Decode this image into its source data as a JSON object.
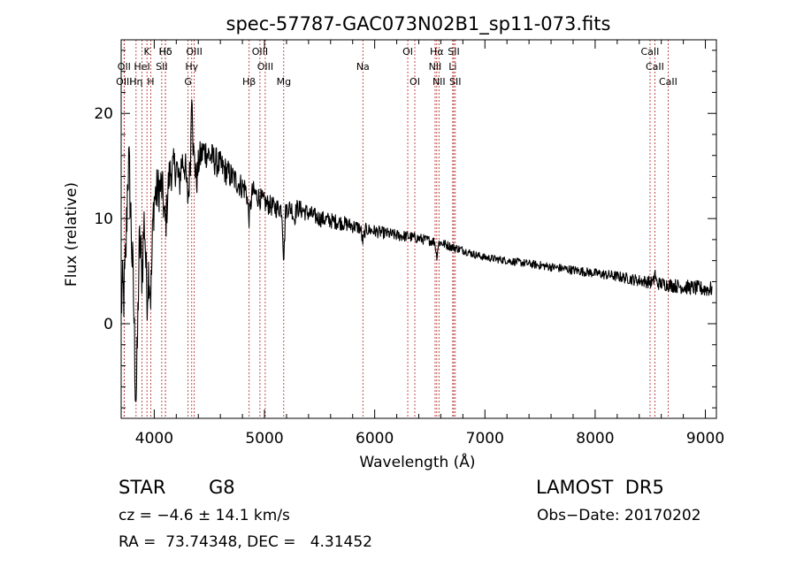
{
  "chart_data": {
    "type": "line",
    "title": "spec-57787-GAC073N02B1_sp11-073.fits",
    "xlabel": "Wavelength (Å)",
    "ylabel": "Flux (relative)",
    "xlim": [
      3700,
      9100
    ],
    "ylim": [
      -9,
      27
    ],
    "xticks": [
      4000,
      5000,
      6000,
      7000,
      8000,
      9000
    ],
    "xtick_labels": [
      "4000",
      "5000",
      "6000",
      "7000",
      "8000",
      "9000"
    ],
    "yticks": [
      0,
      10,
      20
    ],
    "ytick_labels": [
      "0",
      "10",
      "20"
    ],
    "grid": false,
    "line_color": "#000000",
    "marker_color": "#b22222",
    "spectrum_knots": [
      [
        3700,
        4
      ],
      [
        3730,
        8
      ],
      [
        3760,
        15
      ],
      [
        3790,
        12
      ],
      [
        3820,
        10
      ],
      [
        3850,
        9
      ],
      [
        3880,
        11
      ],
      [
        3910,
        12
      ],
      [
        3940,
        11
      ],
      [
        3970,
        10
      ],
      [
        4000,
        12
      ],
      [
        4050,
        13
      ],
      [
        4100,
        13.5
      ],
      [
        4150,
        14.5
      ],
      [
        4200,
        15
      ],
      [
        4250,
        15.5
      ],
      [
        4300,
        15
      ],
      [
        4350,
        16
      ],
      [
        4400,
        15.5
      ],
      [
        4450,
        16.5
      ],
      [
        4500,
        16
      ],
      [
        4600,
        15
      ],
      [
        4700,
        14
      ],
      [
        4800,
        13
      ],
      [
        4900,
        12.5
      ],
      [
        5000,
        11.5
      ],
      [
        5100,
        11
      ],
      [
        5200,
        11
      ],
      [
        5300,
        11
      ],
      [
        5400,
        10.5
      ],
      [
        5500,
        10
      ],
      [
        5600,
        9.8
      ],
      [
        5700,
        9.6
      ],
      [
        5800,
        9.3
      ],
      [
        5900,
        9.0
      ],
      [
        6000,
        8.8
      ],
      [
        6100,
        8.6
      ],
      [
        6200,
        8.4
      ],
      [
        6300,
        8.3
      ],
      [
        6400,
        8.1
      ],
      [
        6500,
        7.9
      ],
      [
        6600,
        7.7
      ],
      [
        6700,
        7.3
      ],
      [
        6800,
        7.0
      ],
      [
        6900,
        6.6
      ],
      [
        7000,
        6.3
      ],
      [
        7200,
        6.0
      ],
      [
        7400,
        5.7
      ],
      [
        7600,
        5.4
      ],
      [
        7800,
        5.1
      ],
      [
        8000,
        4.8
      ],
      [
        8200,
        4.5
      ],
      [
        8400,
        4.1
      ],
      [
        8600,
        3.8
      ],
      [
        8800,
        3.5
      ],
      [
        9000,
        3.3
      ],
      [
        9060,
        3.3
      ]
    ],
    "spectrum_features": [
      [
        3728,
        -3,
        25
      ],
      [
        3750,
        -4,
        20
      ],
      [
        3770,
        6,
        20
      ],
      [
        3798,
        -6,
        20
      ],
      [
        3836,
        -15,
        15
      ],
      [
        3889,
        -6,
        12
      ],
      [
        3934,
        -8,
        12
      ],
      [
        3968,
        -7,
        12
      ],
      [
        4102,
        -4,
        15
      ],
      [
        4226,
        -2,
        10
      ],
      [
        4305,
        -3,
        12
      ],
      [
        4341,
        7,
        6
      ],
      [
        4384,
        -2,
        10
      ],
      [
        4861,
        -2.5,
        12
      ],
      [
        5175,
        -4.5,
        8
      ],
      [
        5270,
        -1,
        10
      ],
      [
        5893,
        -1.2,
        10
      ],
      [
        6563,
        -1.3,
        8
      ],
      [
        8542,
        1,
        6
      ]
    ],
    "noise_amplitude": [
      [
        3700,
        3.5
      ],
      [
        3900,
        3
      ],
      [
        4100,
        2
      ],
      [
        4400,
        1.6
      ],
      [
        5000,
        1
      ],
      [
        6000,
        0.6
      ],
      [
        7000,
        0.35
      ],
      [
        8000,
        0.45
      ],
      [
        9000,
        0.75
      ]
    ],
    "lines": [
      {
        "label": "Hδ",
        "wl": 4102,
        "row": 0
      },
      {
        "label": "K",
        "wl": 3934,
        "row": 0
      },
      {
        "label": "Hδ",
        "wl": 4102,
        "row": 0
      },
      {
        "label": "OIII",
        "wl": 4363,
        "row": 0
      },
      {
        "label": "OIII",
        "wl": 4959,
        "row": 0
      },
      {
        "label": "OI",
        "wl": 6300,
        "row": 0
      },
      {
        "label": "Hα",
        "wl": 6563,
        "row": 0
      },
      {
        "label": "SII",
        "wl": 6717,
        "row": 0
      },
      {
        "label": "CaII",
        "wl": 8498,
        "row": 0
      },
      {
        "label": "OII",
        "wl": 3727,
        "row": 1
      },
      {
        "label": "HeI",
        "wl": 3889,
        "row": 1
      },
      {
        "label": "SII",
        "wl": 4068,
        "row": 1
      },
      {
        "label": "Hγ",
        "wl": 4340,
        "row": 1
      },
      {
        "label": "OIII",
        "wl": 5007,
        "row": 1
      },
      {
        "label": "Na",
        "wl": 5893,
        "row": 1
      },
      {
        "label": "NII",
        "wl": 6548,
        "row": 1
      },
      {
        "label": "Li",
        "wl": 6708,
        "row": 1
      },
      {
        "label": "CaII",
        "wl": 8542,
        "row": 1
      },
      {
        "label": "OIII",
        "wl": 3727,
        "row": 2
      },
      {
        "label": "Hη",
        "wl": 3835,
        "row": 2
      },
      {
        "label": "H",
        "wl": 3968,
        "row": 2
      },
      {
        "label": "G",
        "wl": 4307,
        "row": 2
      },
      {
        "label": "Hβ",
        "wl": 4861,
        "row": 2
      },
      {
        "label": "Mg",
        "wl": 5175,
        "row": 2
      },
      {
        "label": "OI",
        "wl": 6364,
        "row": 2
      },
      {
        "label": "NII",
        "wl": 6583,
        "row": 2
      },
      {
        "label": "SII",
        "wl": 6731,
        "row": 2
      },
      {
        "label": "CaII",
        "wl": 8662,
        "row": 2
      }
    ]
  },
  "info": {
    "class": "STAR",
    "subclass": "G8",
    "survey": "LAMOST  DR5",
    "cz": "cz = −4.6 ± 14.1 km/s",
    "obs_date": "Obs−Date: 20170202",
    "coords": "RA =  73.74348, DEC =   4.31452"
  }
}
